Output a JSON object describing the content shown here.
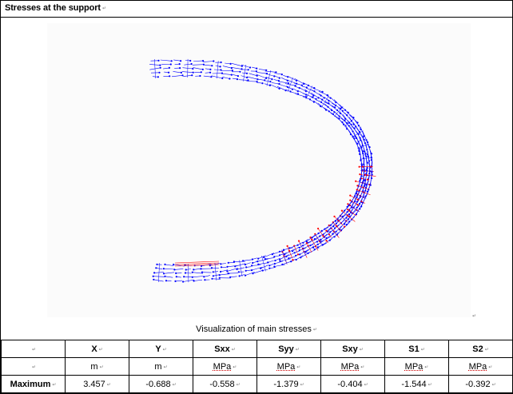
{
  "title": "Stresses at the support",
  "para_mark": "↵",
  "caption": "Visualization of main stresses",
  "table": {
    "headers": [
      "",
      "X",
      "Y",
      "Sxx",
      "Syy",
      "Sxy",
      "S1",
      "S2"
    ],
    "units": [
      "",
      "m",
      "m",
      "MPa",
      "MPa",
      "MPa",
      "MPa",
      "MPa"
    ],
    "rows": [
      {
        "label": "Maximum",
        "values": [
          "3.457",
          "-0.688",
          "-0.558",
          "-1.379",
          "-0.404",
          "-1.544",
          "-0.392"
        ]
      }
    ]
  },
  "colors": {
    "principal_compression": "#0000ff",
    "principal_tension": "#ff0000"
  }
}
